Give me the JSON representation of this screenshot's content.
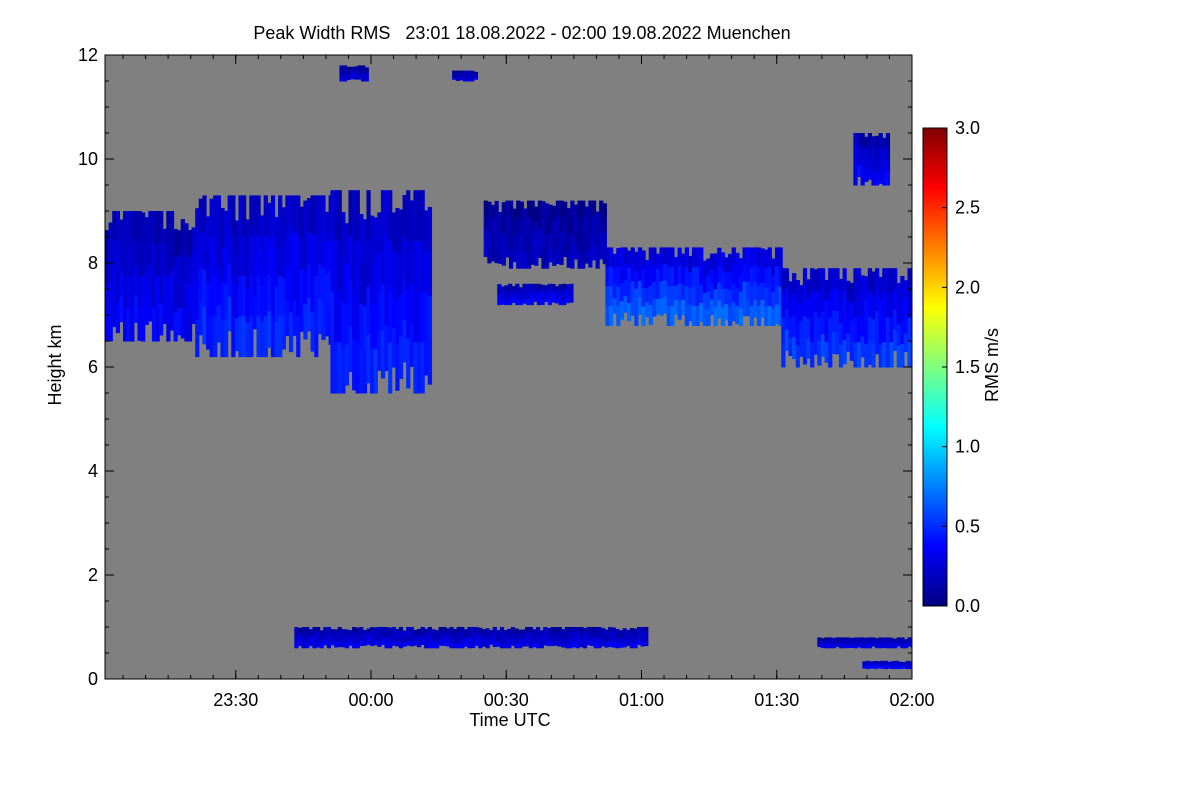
{
  "chart_data": {
    "type": "heatmap",
    "title": "Peak Width RMS   23:01 18.08.2022 - 02:00 19.08.2022 Muenchen",
    "xlabel": "Time UTC",
    "ylabel": "Height km",
    "colorbar_label": "RMS m/s",
    "xlim": [
      "23:01",
      "02:00"
    ],
    "x_ticks": [
      {
        "value": 29,
        "label": "23:30"
      },
      {
        "value": 59,
        "label": "00:00"
      },
      {
        "value": 89,
        "label": "00:30"
      },
      {
        "value": 119,
        "label": "01:00"
      },
      {
        "value": 149,
        "label": "01:30"
      },
      {
        "value": 179,
        "label": "02:00"
      }
    ],
    "ylim": [
      0,
      12
    ],
    "y_ticks": [
      0,
      2,
      4,
      6,
      8,
      10,
      12
    ],
    "colorbar_range": [
      0.0,
      3.0
    ],
    "colorbar_ticks": [
      "0.0",
      "0.5",
      "1.0",
      "1.5",
      "2.0",
      "2.5",
      "3.0"
    ],
    "colormap": [
      "#00007f",
      "#0000ff",
      "#007fff",
      "#00ffff",
      "#7fff7f",
      "#ffff00",
      "#ff7f00",
      "#ff0000",
      "#7f0000"
    ],
    "background_color": "#808080",
    "layers": [
      {
        "t_start": 0,
        "t_end": 20,
        "base_km": 6.5,
        "top_km": 9.0,
        "rms": 0.3
      },
      {
        "t_start": 20,
        "t_end": 50,
        "base_km": 6.2,
        "top_km": 9.3,
        "rms": 0.4
      },
      {
        "t_start": 50,
        "t_end": 72,
        "base_km": 5.5,
        "top_km": 9.4,
        "rms": 0.4
      },
      {
        "t_start": 84,
        "t_end": 111,
        "base_km": 7.9,
        "top_km": 9.2,
        "rms": 0.15
      },
      {
        "t_start": 87,
        "t_end": 103,
        "base_km": 7.2,
        "top_km": 7.6,
        "rms": 0.3
      },
      {
        "t_start": 111,
        "t_end": 150,
        "base_km": 6.8,
        "top_km": 8.3,
        "rms": 0.55
      },
      {
        "t_start": 150,
        "t_end": 179,
        "base_km": 6.0,
        "top_km": 7.9,
        "rms": 0.45
      },
      {
        "t_start": 166,
        "t_end": 174,
        "base_km": 9.5,
        "top_km": 10.5,
        "rms": 0.3
      },
      {
        "t_start": 52,
        "t_end": 58,
        "base_km": 11.5,
        "top_km": 11.8,
        "rms": 0.2
      },
      {
        "t_start": 77,
        "t_end": 82,
        "base_km": 11.5,
        "top_km": 11.7,
        "rms": 0.2
      },
      {
        "t_start": 42,
        "t_end": 120,
        "base_km": 0.6,
        "top_km": 1.0,
        "rms": 0.25
      },
      {
        "t_start": 158,
        "t_end": 179,
        "base_km": 0.6,
        "top_km": 0.8,
        "rms": 0.25
      },
      {
        "t_start": 168,
        "t_end": 179,
        "base_km": 0.2,
        "top_km": 0.35,
        "rms": 0.3
      }
    ]
  }
}
